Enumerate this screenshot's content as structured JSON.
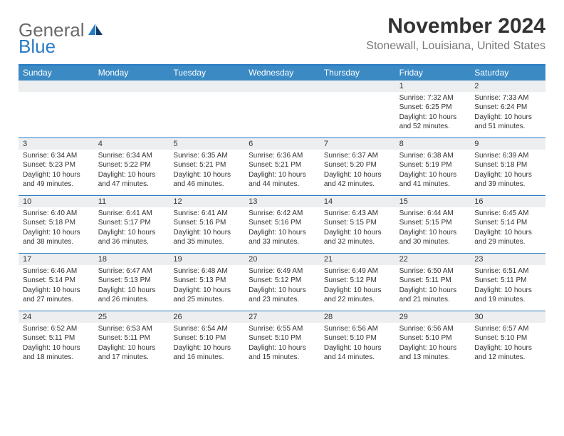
{
  "logo": {
    "word1": "General",
    "word2": "Blue"
  },
  "title": "November 2024",
  "location": "Stonewall, Louisiana, United States",
  "colors": {
    "accent": "#2a7bc4",
    "header_bg": "#3b8ac4",
    "strip_bg": "#eceeef",
    "text": "#333333",
    "muted": "#777777"
  },
  "weekdays": [
    "Sunday",
    "Monday",
    "Tuesday",
    "Wednesday",
    "Thursday",
    "Friday",
    "Saturday"
  ],
  "weeks": [
    [
      {
        "n": "",
        "lines": [
          "",
          "",
          "",
          ""
        ]
      },
      {
        "n": "",
        "lines": [
          "",
          "",
          "",
          ""
        ]
      },
      {
        "n": "",
        "lines": [
          "",
          "",
          "",
          ""
        ]
      },
      {
        "n": "",
        "lines": [
          "",
          "",
          "",
          ""
        ]
      },
      {
        "n": "",
        "lines": [
          "",
          "",
          "",
          ""
        ]
      },
      {
        "n": "1",
        "lines": [
          "Sunrise: 7:32 AM",
          "Sunset: 6:25 PM",
          "Daylight: 10 hours",
          "and 52 minutes."
        ]
      },
      {
        "n": "2",
        "lines": [
          "Sunrise: 7:33 AM",
          "Sunset: 6:24 PM",
          "Daylight: 10 hours",
          "and 51 minutes."
        ]
      }
    ],
    [
      {
        "n": "3",
        "lines": [
          "Sunrise: 6:34 AM",
          "Sunset: 5:23 PM",
          "Daylight: 10 hours",
          "and 49 minutes."
        ]
      },
      {
        "n": "4",
        "lines": [
          "Sunrise: 6:34 AM",
          "Sunset: 5:22 PM",
          "Daylight: 10 hours",
          "and 47 minutes."
        ]
      },
      {
        "n": "5",
        "lines": [
          "Sunrise: 6:35 AM",
          "Sunset: 5:21 PM",
          "Daylight: 10 hours",
          "and 46 minutes."
        ]
      },
      {
        "n": "6",
        "lines": [
          "Sunrise: 6:36 AM",
          "Sunset: 5:21 PM",
          "Daylight: 10 hours",
          "and 44 minutes."
        ]
      },
      {
        "n": "7",
        "lines": [
          "Sunrise: 6:37 AM",
          "Sunset: 5:20 PM",
          "Daylight: 10 hours",
          "and 42 minutes."
        ]
      },
      {
        "n": "8",
        "lines": [
          "Sunrise: 6:38 AM",
          "Sunset: 5:19 PM",
          "Daylight: 10 hours",
          "and 41 minutes."
        ]
      },
      {
        "n": "9",
        "lines": [
          "Sunrise: 6:39 AM",
          "Sunset: 5:18 PM",
          "Daylight: 10 hours",
          "and 39 minutes."
        ]
      }
    ],
    [
      {
        "n": "10",
        "lines": [
          "Sunrise: 6:40 AM",
          "Sunset: 5:18 PM",
          "Daylight: 10 hours",
          "and 38 minutes."
        ]
      },
      {
        "n": "11",
        "lines": [
          "Sunrise: 6:41 AM",
          "Sunset: 5:17 PM",
          "Daylight: 10 hours",
          "and 36 minutes."
        ]
      },
      {
        "n": "12",
        "lines": [
          "Sunrise: 6:41 AM",
          "Sunset: 5:16 PM",
          "Daylight: 10 hours",
          "and 35 minutes."
        ]
      },
      {
        "n": "13",
        "lines": [
          "Sunrise: 6:42 AM",
          "Sunset: 5:16 PM",
          "Daylight: 10 hours",
          "and 33 minutes."
        ]
      },
      {
        "n": "14",
        "lines": [
          "Sunrise: 6:43 AM",
          "Sunset: 5:15 PM",
          "Daylight: 10 hours",
          "and 32 minutes."
        ]
      },
      {
        "n": "15",
        "lines": [
          "Sunrise: 6:44 AM",
          "Sunset: 5:15 PM",
          "Daylight: 10 hours",
          "and 30 minutes."
        ]
      },
      {
        "n": "16",
        "lines": [
          "Sunrise: 6:45 AM",
          "Sunset: 5:14 PM",
          "Daylight: 10 hours",
          "and 29 minutes."
        ]
      }
    ],
    [
      {
        "n": "17",
        "lines": [
          "Sunrise: 6:46 AM",
          "Sunset: 5:14 PM",
          "Daylight: 10 hours",
          "and 27 minutes."
        ]
      },
      {
        "n": "18",
        "lines": [
          "Sunrise: 6:47 AM",
          "Sunset: 5:13 PM",
          "Daylight: 10 hours",
          "and 26 minutes."
        ]
      },
      {
        "n": "19",
        "lines": [
          "Sunrise: 6:48 AM",
          "Sunset: 5:13 PM",
          "Daylight: 10 hours",
          "and 25 minutes."
        ]
      },
      {
        "n": "20",
        "lines": [
          "Sunrise: 6:49 AM",
          "Sunset: 5:12 PM",
          "Daylight: 10 hours",
          "and 23 minutes."
        ]
      },
      {
        "n": "21",
        "lines": [
          "Sunrise: 6:49 AM",
          "Sunset: 5:12 PM",
          "Daylight: 10 hours",
          "and 22 minutes."
        ]
      },
      {
        "n": "22",
        "lines": [
          "Sunrise: 6:50 AM",
          "Sunset: 5:11 PM",
          "Daylight: 10 hours",
          "and 21 minutes."
        ]
      },
      {
        "n": "23",
        "lines": [
          "Sunrise: 6:51 AM",
          "Sunset: 5:11 PM",
          "Daylight: 10 hours",
          "and 19 minutes."
        ]
      }
    ],
    [
      {
        "n": "24",
        "lines": [
          "Sunrise: 6:52 AM",
          "Sunset: 5:11 PM",
          "Daylight: 10 hours",
          "and 18 minutes."
        ]
      },
      {
        "n": "25",
        "lines": [
          "Sunrise: 6:53 AM",
          "Sunset: 5:11 PM",
          "Daylight: 10 hours",
          "and 17 minutes."
        ]
      },
      {
        "n": "26",
        "lines": [
          "Sunrise: 6:54 AM",
          "Sunset: 5:10 PM",
          "Daylight: 10 hours",
          "and 16 minutes."
        ]
      },
      {
        "n": "27",
        "lines": [
          "Sunrise: 6:55 AM",
          "Sunset: 5:10 PM",
          "Daylight: 10 hours",
          "and 15 minutes."
        ]
      },
      {
        "n": "28",
        "lines": [
          "Sunrise: 6:56 AM",
          "Sunset: 5:10 PM",
          "Daylight: 10 hours",
          "and 14 minutes."
        ]
      },
      {
        "n": "29",
        "lines": [
          "Sunrise: 6:56 AM",
          "Sunset: 5:10 PM",
          "Daylight: 10 hours",
          "and 13 minutes."
        ]
      },
      {
        "n": "30",
        "lines": [
          "Sunrise: 6:57 AM",
          "Sunset: 5:10 PM",
          "Daylight: 10 hours",
          "and 12 minutes."
        ]
      }
    ]
  ]
}
